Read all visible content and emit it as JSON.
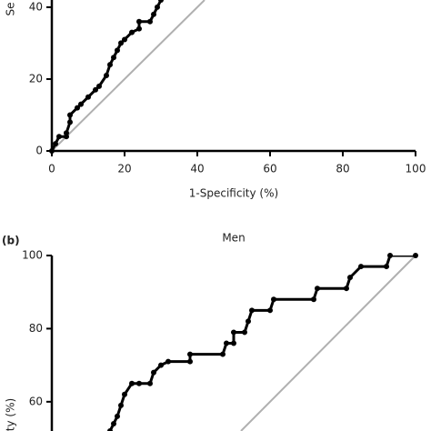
{
  "chart_data": [
    {
      "type": "line",
      "x_label": "1-Specificity (%)",
      "y_label": "Se",
      "x": [
        0,
        1,
        2,
        4,
        4,
        5,
        5,
        7,
        8,
        10,
        12,
        13,
        15,
        16,
        17,
        18,
        19,
        20,
        22,
        24,
        24,
        27,
        28,
        29,
        30
      ],
      "series": [
        {
          "color": "#000000",
          "values": [
            0,
            2,
            4,
            4,
            5,
            8,
            10,
            12,
            13,
            15,
            17,
            18,
            21,
            24,
            26,
            28,
            30,
            31,
            33,
            34,
            36,
            36,
            38,
            40,
            42
          ]
        }
      ],
      "xlim": [
        0,
        100
      ],
      "ylim": [
        0,
        42
      ],
      "xticks": [
        0,
        20,
        40,
        60,
        80,
        100
      ],
      "yticks": [
        0,
        20,
        40
      ]
    },
    {
      "type": "line",
      "panel_label": "(b)",
      "title": "Men",
      "y_label": "ty (%)",
      "x": [
        16,
        17,
        18,
        19,
        20,
        22,
        24,
        27,
        28,
        30,
        32,
        38,
        38,
        47,
        48,
        50,
        50,
        53,
        54,
        55,
        60,
        61,
        72,
        73,
        81,
        82,
        85,
        92,
        93,
        100
      ],
      "series": [
        {
          "color": "#000000",
          "values": [
            52,
            54,
            56,
            59,
            62,
            65,
            65,
            65,
            68,
            70,
            71,
            71,
            73,
            73,
            76,
            76,
            79,
            79,
            82,
            85,
            85,
            88,
            88,
            91,
            91,
            94,
            97,
            97,
            100,
            100
          ]
        }
      ],
      "xlim": [
        0,
        100
      ],
      "ylim": [
        52,
        100
      ],
      "yticks": [
        60,
        80,
        100
      ]
    }
  ]
}
